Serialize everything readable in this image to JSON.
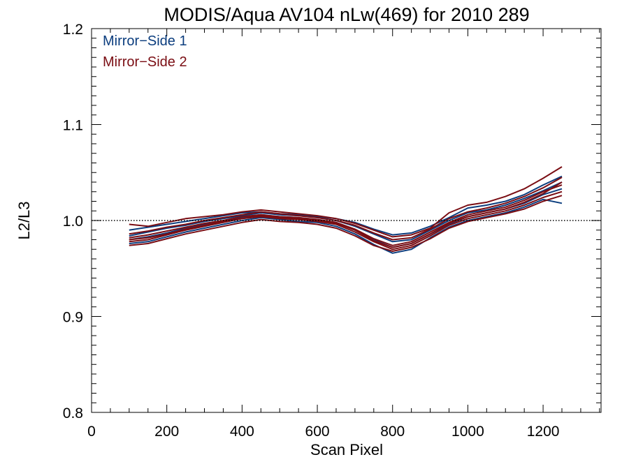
{
  "chart_data": {
    "type": "line",
    "title": "MODIS/Aqua AV104 nLw(469) for 2010 289",
    "xlabel": "Scan Pixel",
    "ylabel": "L2/L3",
    "xlim": [
      0,
      1354
    ],
    "ylim": [
      0.8,
      1.2
    ],
    "xticks": [
      0,
      200,
      400,
      600,
      800,
      1000,
      1200
    ],
    "xtick_labels": [
      "0",
      "200",
      "400",
      "600",
      "800",
      "1000",
      "1200"
    ],
    "yticks": [
      0.8,
      0.9,
      1.0,
      1.1,
      1.2
    ],
    "ytick_labels": [
      "0.8",
      "0.9",
      "1.0",
      "1.1",
      "1.2"
    ],
    "reference_line": {
      "y": 1.0,
      "style": "dotted"
    },
    "grid": false,
    "legend_position": "top-left",
    "legend": [
      {
        "label": "Mirror−Side 1",
        "color": "#0b3d7e"
      },
      {
        "label": "Mirror−Side 2",
        "color": "#7a0d13"
      }
    ],
    "x": [
      100,
      150,
      200,
      250,
      300,
      350,
      400,
      450,
      500,
      550,
      600,
      650,
      700,
      750,
      800,
      850,
      900,
      950,
      1000,
      1050,
      1100,
      1150,
      1200,
      1250
    ],
    "series": [
      {
        "name": "Mirror−Side 1",
        "color": "#0b3d7e",
        "profiles": [
          [
            0.99,
            0.993,
            0.996,
            0.999,
            1.002,
            1.005,
            1.008,
            1.009,
            1.007,
            1.006,
            1.004,
            1.002,
            0.998,
            0.991,
            0.985,
            0.987,
            0.994,
            1.003,
            1.013,
            1.016,
            1.02,
            1.027,
            1.037,
            1.046
          ],
          [
            0.98,
            0.983,
            0.987,
            0.992,
            0.996,
            0.999,
            1.003,
            1.006,
            1.004,
            1.003,
            1.001,
            0.998,
            0.99,
            0.98,
            0.972,
            0.976,
            0.986,
            0.996,
            1.004,
            1.008,
            1.012,
            1.018,
            1.027,
            1.033
          ],
          [
            0.976,
            0.978,
            0.983,
            0.988,
            0.992,
            0.996,
            1.0,
            1.003,
            1.001,
            0.999,
            0.998,
            0.994,
            0.986,
            0.975,
            0.966,
            0.97,
            0.982,
            0.993,
            1.0,
            1.004,
            1.008,
            1.014,
            1.022,
            1.018
          ],
          [
            0.984,
            0.988,
            0.992,
            0.995,
            0.999,
            1.002,
            1.005,
            1.008,
            1.006,
            1.005,
            1.003,
            1.0,
            0.994,
            0.986,
            0.978,
            0.98,
            0.99,
            1.0,
            1.008,
            1.011,
            1.016,
            1.023,
            1.031,
            1.04
          ]
        ]
      },
      {
        "name": "Mirror−Side 2",
        "color": "#7a0d13",
        "profiles": [
          [
            0.996,
            0.994,
            0.998,
            1.002,
            1.004,
            1.006,
            1.009,
            1.011,
            1.009,
            1.007,
            1.005,
            1.002,
            0.997,
            0.99,
            0.983,
            0.985,
            0.992,
            1.008,
            1.016,
            1.019,
            1.025,
            1.033,
            1.044,
            1.056
          ],
          [
            0.982,
            0.985,
            0.989,
            0.993,
            0.997,
            1.0,
            1.004,
            1.006,
            1.004,
            1.003,
            1.001,
            0.998,
            0.991,
            0.981,
            0.974,
            0.978,
            0.988,
            0.998,
            1.006,
            1.01,
            1.014,
            1.021,
            1.03,
            1.037
          ],
          [
            0.978,
            0.98,
            0.985,
            0.99,
            0.994,
            0.998,
            1.002,
            1.004,
            1.002,
            1.001,
            0.999,
            0.996,
            0.988,
            0.978,
            0.97,
            0.974,
            0.984,
            0.995,
            1.002,
            1.006,
            1.01,
            1.016,
            1.024,
            1.03
          ],
          [
            0.974,
            0.976,
            0.981,
            0.986,
            0.99,
            0.994,
            0.998,
            1.001,
            0.999,
            0.998,
            0.996,
            0.992,
            0.984,
            0.974,
            0.968,
            0.972,
            0.981,
            0.992,
            0.999,
            1.003,
            1.007,
            1.012,
            1.02,
            1.026
          ],
          [
            0.986,
            0.989,
            0.993,
            0.996,
            1.0,
            1.003,
            1.006,
            1.009,
            1.007,
            1.005,
            1.003,
            1.0,
            0.995,
            0.987,
            0.98,
            0.982,
            0.991,
            1.002,
            1.009,
            1.013,
            1.018,
            1.025,
            1.034,
            1.045
          ],
          [
            0.98,
            0.982,
            0.986,
            0.991,
            0.995,
            0.999,
            1.002,
            1.005,
            1.003,
            1.002,
            1.0,
            0.997,
            0.99,
            0.979,
            0.972,
            0.976,
            0.986,
            0.997,
            1.004,
            1.008,
            1.012,
            1.019,
            1.028,
            1.04
          ]
        ]
      }
    ]
  }
}
